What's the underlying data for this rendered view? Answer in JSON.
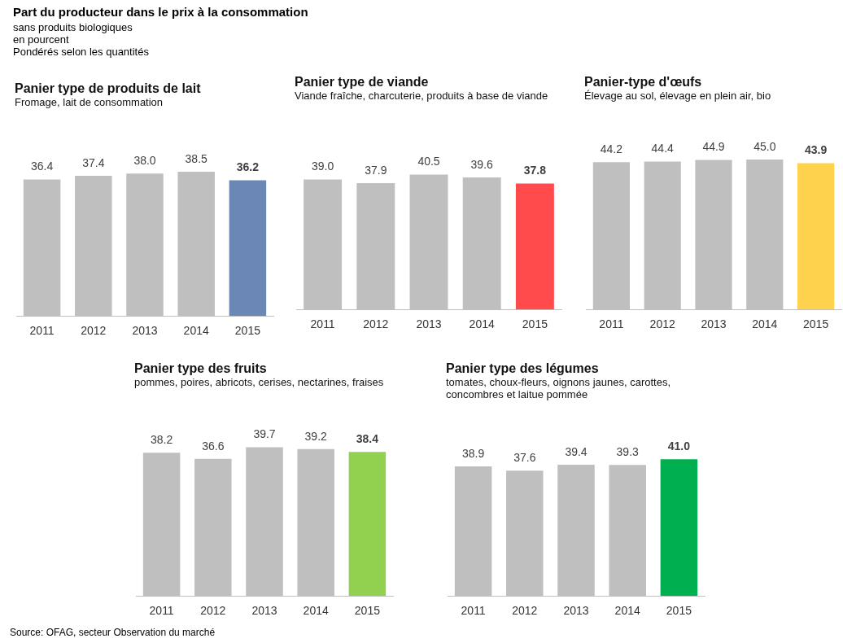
{
  "chart_data": [
    {
      "type": "other",
      "title": "Part du producteur dans le prix à la consommation",
      "subtitle": "sans produits biologiques\nen pourcent\nPondérés selon les quantités",
      "annotations": [
        "Source: OFAG, secteur Observation du marché"
      ]
    },
    {
      "type": "bar",
      "title": "Panier type de produits de lait",
      "subtitle": "Fromage, lait de consommation",
      "categories": [
        "2011",
        "2012",
        "2013",
        "2014",
        "2015"
      ],
      "values": [
        36.4,
        37.4,
        38.0,
        38.5,
        36.2
      ],
      "colors": [
        "#bfbfbf",
        "#bfbfbf",
        "#bfbfbf",
        "#bfbfbf",
        "#6b87b5"
      ],
      "value_labels": [
        "36.4",
        "37.4",
        "38.0",
        "38.5",
        "36.2"
      ]
    },
    {
      "type": "bar",
      "title": "Panier type de viande",
      "subtitle": "Viande fraîche, charcuterie, produits à base de viande",
      "categories": [
        "2011",
        "2012",
        "2013",
        "2014",
        "2015"
      ],
      "values": [
        39.0,
        37.9,
        40.5,
        39.6,
        37.8
      ],
      "colors": [
        "#bfbfbf",
        "#bfbfbf",
        "#bfbfbf",
        "#bfbfbf",
        "#ff4b4b"
      ],
      "value_labels": [
        "39.0",
        "37.9",
        "40.5",
        "39.6",
        "37.8"
      ]
    },
    {
      "type": "bar",
      "title": "Panier-type d'œufs",
      "subtitle": "Élevage au sol, élevage en plein air, bio",
      "categories": [
        "2011",
        "2012",
        "2013",
        "2014",
        "2015"
      ],
      "values": [
        44.2,
        44.4,
        44.9,
        45.0,
        43.9
      ],
      "colors": [
        "#bfbfbf",
        "#bfbfbf",
        "#bfbfbf",
        "#bfbfbf",
        "#ffd24d"
      ],
      "value_labels": [
        "44.2",
        "44.4",
        "44.9",
        "45.0",
        "43.9"
      ]
    },
    {
      "type": "bar",
      "title": "Panier type des fruits",
      "subtitle": "pommes, poires, abricots, cerises, nectarines, fraises",
      "categories": [
        "2011",
        "2012",
        "2013",
        "2014",
        "2015"
      ],
      "values": [
        38.2,
        36.6,
        39.7,
        39.2,
        38.4
      ],
      "colors": [
        "#bfbfbf",
        "#bfbfbf",
        "#bfbfbf",
        "#bfbfbf",
        "#92d050"
      ],
      "value_labels": [
        "38.2",
        "36.6",
        "39.7",
        "39.2",
        "38.4"
      ]
    },
    {
      "type": "bar",
      "title": "Panier type des légumes",
      "subtitle": "tomates, choux-fleurs, oignons  jaunes, carottes, concombres et laitue pommée",
      "categories": [
        "2011",
        "2012",
        "2013",
        "2014",
        "2015"
      ],
      "values": [
        38.9,
        37.6,
        39.4,
        39.3,
        41.0
      ],
      "colors": [
        "#bfbfbf",
        "#bfbfbf",
        "#bfbfbf",
        "#bfbfbf",
        "#00b050"
      ],
      "value_labels": [
        "38.9",
        "37.6",
        "39.4",
        "39.3",
        "41.0"
      ]
    }
  ]
}
